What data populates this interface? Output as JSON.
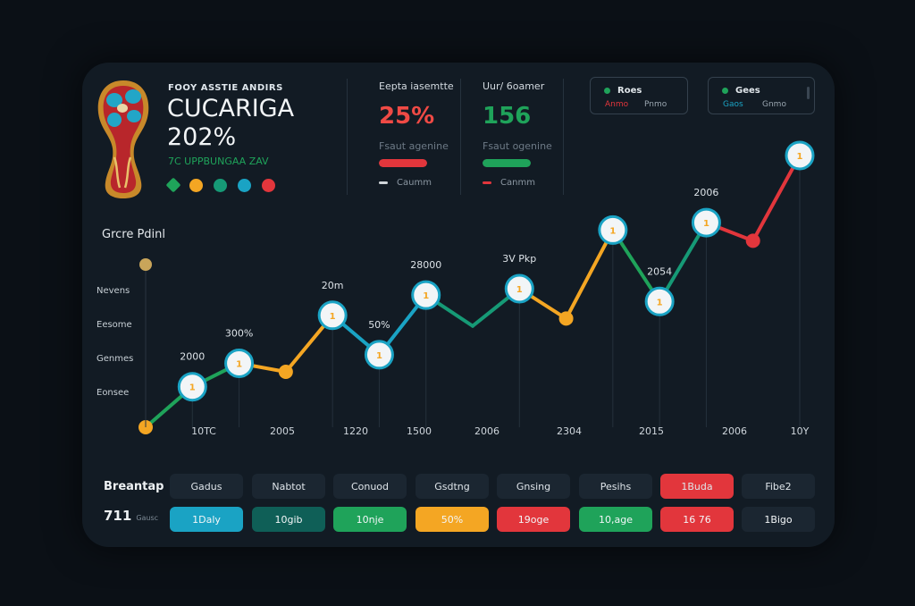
{
  "brand": {
    "kicker": "FOOY ASSTIE ANDIRS",
    "title": "CUCARIGA 202%",
    "subtitle": "7C UPPBUNGAA ZAV",
    "icons": [
      {
        "name": "green-diamond-icon",
        "color": "#1fa35a"
      },
      {
        "name": "orange-star-icon",
        "color": "#f4a623"
      },
      {
        "name": "ball-icon",
        "color": "#169a76"
      },
      {
        "name": "globe-icon",
        "color": "#1aa3c4"
      },
      {
        "name": "red-flower-icon",
        "color": "#e2363c"
      }
    ]
  },
  "stats": [
    {
      "label": "Eepta iasemtte",
      "value": "25%",
      "value_color": "#f04a45",
      "note": "Fsaut agenine",
      "bar_color": "#e2363c",
      "bar_fill": 1.0,
      "foot": "Caumm",
      "dash_color": "#d0d6da"
    },
    {
      "label": "Uur/ 6oamer",
      "value": "156",
      "value_color": "#1fa35a",
      "note": "Fsaut ogenine",
      "bar_color": "#1fa35a",
      "bar_fill": 1.0,
      "foot": "Canmm",
      "dash_color": "#e2363c"
    }
  ],
  "boxes": [
    {
      "label": "Roes",
      "sub_left": "Anmo",
      "sub_left_color": "#e2363c",
      "sub_right": "Pnmo",
      "sub_right_color": "#9aa6b0"
    },
    {
      "label": "Gees",
      "sub_left": "Gaos",
      "sub_left_color": "#1aa3c4",
      "sub_right": "Gnmo",
      "sub_right_color": "#9aa6b0"
    }
  ],
  "chart_data": {
    "type": "line",
    "title": "Grcre Pdinl",
    "ylabels": [
      "Nevens",
      "Eesome",
      "Genmes",
      "Eonsee"
    ],
    "categories": [
      "10TC",
      "2005",
      "1220",
      "1500",
      "2006",
      "2304",
      "2015",
      "2006",
      "10Y"
    ],
    "points": [
      {
        "v": 0.0,
        "marker": "dot",
        "color": "#f4a623",
        "label": ""
      },
      {
        "v": 0.38,
        "marker": "ring",
        "color": "#1fa35a",
        "label": "2000"
      },
      {
        "v": 0.6,
        "marker": "ring",
        "color": "#1fa35a",
        "label": "300%"
      },
      {
        "v": 0.52,
        "marker": "dot",
        "color": "#f4a623",
        "label": ""
      },
      {
        "v": 1.05,
        "marker": "ring",
        "color": "#f4a623",
        "label": "20m"
      },
      {
        "v": 0.68,
        "marker": "ring",
        "color": "#1aa3c4",
        "label": "50%"
      },
      {
        "v": 1.24,
        "marker": "ring",
        "color": "#1aa3c4",
        "label": "28000"
      },
      {
        "v": 0.95,
        "marker": "none",
        "color": "#169a76",
        "label": ""
      },
      {
        "v": 1.3,
        "marker": "ring",
        "color": "#169a76",
        "label": "3V Pkp"
      },
      {
        "v": 1.02,
        "marker": "dot",
        "color": "#f4a623",
        "label": ""
      },
      {
        "v": 1.85,
        "marker": "ring",
        "color": "#f4a623",
        "label": ""
      },
      {
        "v": 1.18,
        "marker": "ring",
        "color": "#1fa35a",
        "label": "2054"
      },
      {
        "v": 1.92,
        "marker": "ring",
        "color": "#169a76",
        "label": "2006"
      },
      {
        "v": 1.75,
        "marker": "dot",
        "color": "#e2363c",
        "label": ""
      },
      {
        "v": 2.55,
        "marker": "ring",
        "color": "#e2363c",
        "label": ""
      }
    ],
    "ylim": [
      0,
      2.6
    ],
    "grid": true
  },
  "breakdown": {
    "title": "Breantap",
    "count": "711",
    "count_sub": "Gausc",
    "labels": [
      "Gadus",
      "Nabtot",
      "Conuod",
      "Gsdtng",
      "Gnsing",
      "Pesihs",
      "1Buda",
      "Fibe2"
    ],
    "label_colors": [
      "#1b2631",
      "#1b2631",
      "#1b2631",
      "#1b2631",
      "#1b2631",
      "#1b2631",
      "#e2363c",
      "#1b2631"
    ],
    "values": [
      "1Daly",
      "10gib",
      "10nje",
      "50%",
      "19oge",
      "10,age",
      "16 76",
      "1Bigo"
    ],
    "value_colors": [
      "#1aa3c4",
      "#0f5f57",
      "#1fa35a",
      "#f4a623",
      "#e2363c",
      "#1fa35a",
      "#e2363c",
      "#1b2631"
    ]
  }
}
